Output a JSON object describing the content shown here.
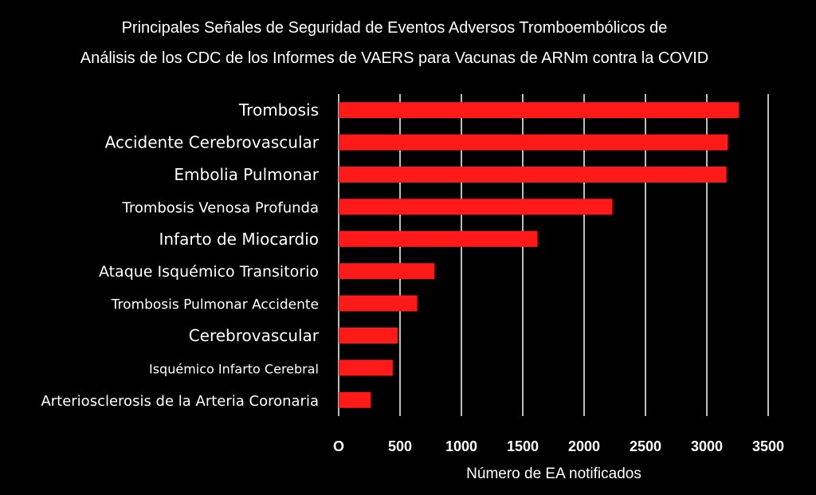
{
  "chart_data": {
    "type": "bar",
    "orientation": "horizontal",
    "title": "Principales Señales de Seguridad de Eventos Adversos Tromboembólicos de",
    "subtitle": "Análisis de los CDC de los Informes de VAERS para Vacunas de ARNm contra la COVID",
    "xlabel": "Número de EA notificados",
    "ylabel": "",
    "categories": [
      "Trombosis",
      "Accidente Cerebrovascular",
      "Embolia Pulmonar",
      "Trombosis Venosa Profunda",
      "Infarto de Miocardio",
      "Ataque Isquémico Transitorio",
      "Trombosis Pulmonar Accidente",
      "Cerebrovascular",
      "Isquémico Infarto Cerebral",
      "Arteriosclerosis de la Arteria Coronaria"
    ],
    "values": [
      3260,
      3170,
      3160,
      2230,
      1620,
      780,
      640,
      480,
      440,
      260
    ],
    "xticks": [
      "O",
      "500",
      "1000",
      "1500",
      "2000",
      "2500",
      "3000",
      "3500"
    ],
    "xlim": [
      0,
      3500
    ],
    "grid": true,
    "bar_color": "#ff1a1a",
    "background": "#000000"
  }
}
